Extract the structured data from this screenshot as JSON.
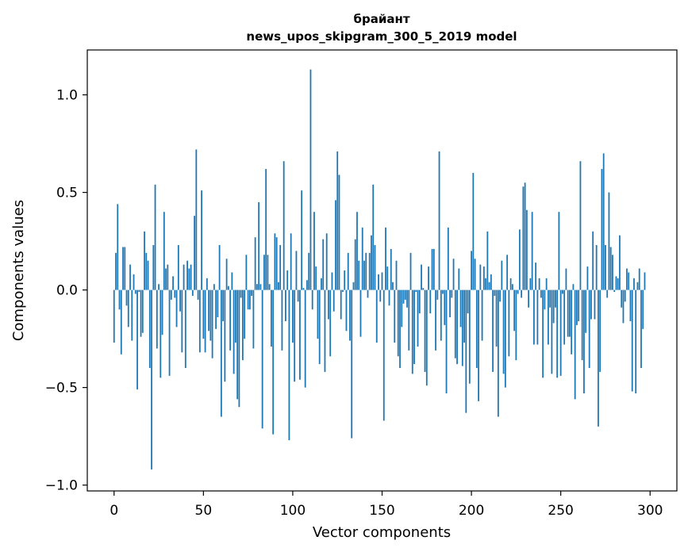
{
  "chart_data": {
    "type": "bar",
    "title_lines": [
      "брайант",
      "news_upos_skipgram_300_5_2019 model"
    ],
    "xlabel": "Vector components",
    "ylabel": "Components values",
    "xlim": [
      -15,
      315
    ],
    "ylim": [
      -1.03,
      1.23
    ],
    "xticks": [
      0,
      50,
      100,
      150,
      200,
      250,
      300
    ],
    "xtick_labels": [
      "0",
      "50",
      "100",
      "150",
      "200",
      "250",
      "300"
    ],
    "yticks": [
      -1.0,
      -0.5,
      0.0,
      0.5,
      1.0
    ],
    "ytick_labels": [
      "−1.0",
      "−0.5",
      "0.0",
      "0.5",
      "1.0"
    ],
    "grid": false,
    "bar_color": "#1f77b4",
    "series": [
      {
        "x_start": 0,
        "values": [
          -0.27,
          0.19,
          0.44,
          -0.1,
          -0.33,
          0.22,
          0.22,
          -0.08,
          -0.19,
          0.13,
          -0.26,
          0.08,
          -0.02,
          -0.51,
          -0.01,
          -0.24,
          -0.22,
          0.3,
          0.19,
          0.15,
          -0.4,
          -0.92,
          0.23,
          0.54,
          -0.3,
          0.03,
          -0.45,
          -0.23,
          0.4,
          0.11,
          0.13,
          -0.44,
          -0.05,
          0.07,
          -0.04,
          -0.19,
          0.23,
          -0.11,
          -0.32,
          0.13,
          -0.4,
          0.15,
          0.11,
          0.13,
          -0.03,
          0.38,
          0.72,
          -0.05,
          -0.32,
          0.51,
          -0.25,
          -0.32,
          0.06,
          -0.21,
          -0.26,
          -0.35,
          0.03,
          -0.2,
          -0.14,
          0.23,
          -0.65,
          -0.16,
          -0.47,
          0.16,
          0.02,
          -0.31,
          0.09,
          -0.43,
          -0.27,
          -0.56,
          -0.6,
          -0.04,
          -0.36,
          -0.25,
          0.18,
          -0.1,
          -0.1,
          -0.03,
          -0.3,
          0.27,
          0.03,
          0.45,
          0.03,
          -0.71,
          0.18,
          0.62,
          0.18,
          0.03,
          -0.29,
          -0.74,
          0.29,
          0.27,
          0.04,
          0.23,
          -0.31,
          0.66,
          -0.16,
          0.1,
          -0.77,
          0.29,
          -0.27,
          -0.47,
          0.2,
          -0.06,
          -0.46,
          0.51,
          0.01,
          -0.5,
          0.05,
          0.19,
          1.13,
          -0.1,
          0.4,
          0.12,
          -0.25,
          -0.38,
          0.06,
          0.26,
          -0.42,
          0.29,
          -0.15,
          -0.34,
          0.09,
          -0.11,
          0.46,
          0.71,
          0.59,
          -0.15,
          -0.01,
          0.1,
          -0.21,
          0.19,
          -0.26,
          -0.76,
          0.04,
          0.26,
          0.4,
          0.15,
          -0.24,
          0.32,
          0.15,
          0.19,
          -0.04,
          0.19,
          0.28,
          0.54,
          0.23,
          -0.27,
          0.08,
          -0.06,
          0.09,
          -0.67,
          0.32,
          0.12,
          -0.08,
          0.21,
          0.04,
          -0.27,
          0.15,
          -0.34,
          -0.4,
          -0.19,
          -0.07,
          -0.05,
          -0.09,
          -0.31,
          0.19,
          -0.43,
          -0.38,
          -0.01,
          -0.29,
          -0.12,
          0.13,
          0.01,
          -0.42,
          -0.49,
          0.12,
          -0.12,
          0.21,
          0.21,
          -0.31,
          -0.05,
          0.71,
          -0.26,
          -0.02,
          -0.18,
          -0.53,
          0.32,
          -0.14,
          -0.04,
          0.16,
          -0.35,
          -0.38,
          0.11,
          -0.19,
          -0.39,
          -0.27,
          -0.63,
          -0.12,
          -0.48,
          0.2,
          0.6,
          0.16,
          -0.4,
          -0.57,
          0.13,
          -0.26,
          0.12,
          0.06,
          0.3,
          0.04,
          0.08,
          -0.42,
          -0.03,
          -0.29,
          -0.65,
          -0.06,
          0.15,
          -0.43,
          -0.5,
          0.18,
          -0.34,
          0.06,
          0.03,
          -0.21,
          -0.36,
          -0.02,
          0.31,
          -0.04,
          0.53,
          0.55,
          0.41,
          -0.09,
          0.06,
          0.4,
          -0.28,
          0.14,
          -0.28,
          0.06,
          -0.04,
          -0.45,
          -0.1,
          0.06,
          -0.28,
          -0.09,
          -0.43,
          -0.17,
          -0.09,
          -0.45,
          0.4,
          -0.44,
          -0.02,
          -0.28,
          0.11,
          -0.24,
          -0.24,
          -0.33,
          0.03,
          -0.56,
          -0.18,
          -0.16,
          0.66,
          -0.36,
          -0.53,
          -0.22,
          0.12,
          -0.4,
          -0.15,
          0.3,
          -0.15,
          0.23,
          -0.7,
          -0.42,
          0.62,
          0.7,
          0.23,
          -0.04,
          0.5,
          0.22,
          0.18,
          -0.01,
          0.07,
          0.06,
          0.28,
          -0.09,
          -0.17,
          -0.06,
          0.11,
          0.09,
          -0.16,
          -0.52,
          0.06,
          -0.53,
          0.04,
          0.11,
          -0.4,
          -0.2,
          0.09
        ]
      }
    ]
  }
}
